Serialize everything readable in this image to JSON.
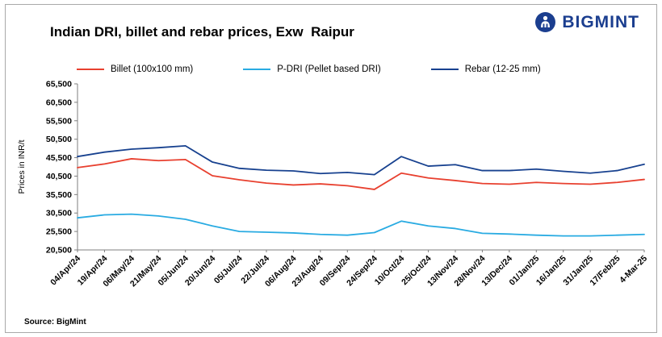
{
  "header": {
    "title": "Indian DRI, billet and rebar prices, Exw  Raipur",
    "brand": "BIGMINT",
    "brand_color": "#1b3e8f"
  },
  "source": "Source: BigMint",
  "chart_data": {
    "type": "line",
    "title": "Indian DRI, billet and rebar prices, Exw Raipur",
    "xlabel": "",
    "ylabel": "Prices in INR/t",
    "ylim": [
      20500,
      65500
    ],
    "ytick_step": 5000,
    "grid": false,
    "legend_position": "top",
    "categories": [
      "04/Apr/24",
      "19/Apr/24",
      "06/May/24",
      "21/May/24",
      "05/Jun/24",
      "20/Jun/24",
      "05/Jul/24",
      "22/Jul/24",
      "06/Aug/24",
      "23/Aug/24",
      "09/Sep/24",
      "24/Sep/24",
      "10/Oct/24",
      "25/Oct/24",
      "13/Nov/24",
      "28/Nov/24",
      "13/Dec/24",
      "01/Jan/25",
      "16/Jan/25",
      "31/Jan/25",
      "17/Feb/25",
      "4-Mar-25"
    ],
    "series": [
      {
        "name": "Billet (100x100 mm)",
        "color": "#e8402f",
        "values": [
          42800,
          43800,
          45200,
          44700,
          45000,
          40600,
          39500,
          38600,
          38100,
          38400,
          37900,
          36900,
          41300,
          40000,
          39300,
          38500,
          38300,
          38800,
          38500,
          38300,
          38800,
          39600
        ]
      },
      {
        "name": "P-DRI (Pellet based DRI)",
        "color": "#29abe2",
        "values": [
          29200,
          30000,
          30200,
          29700,
          28800,
          27000,
          25500,
          25300,
          25100,
          24700,
          24500,
          25200,
          28300,
          27000,
          26300,
          25000,
          24800,
          24500,
          24300,
          24300,
          24500,
          24700
        ]
      },
      {
        "name": "Rebar (12-25 mm)",
        "color": "#17418f",
        "values": [
          45800,
          47000,
          47800,
          48200,
          48700,
          44300,
          42600,
          42100,
          41900,
          41200,
          41500,
          40900,
          45800,
          43200,
          43600,
          42000,
          42000,
          42400,
          41800,
          41300,
          42000,
          43700
        ]
      }
    ]
  }
}
